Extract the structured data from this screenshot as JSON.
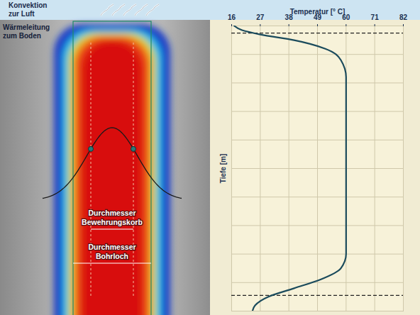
{
  "diagram": {
    "convection_label": "Konvektion zur Luft",
    "conduction_label": "Wärmeleitung zum Boden",
    "cage_diameter_label": "Durchmesser Bewehrungskorb",
    "borehole_diameter_label": "Durchmesser Bohrloch"
  },
  "chart_data": {
    "type": "line",
    "x_label": "Temperatur [° C]",
    "y_label": "Tiefe [m]",
    "x": [
      17,
      20,
      27,
      40,
      52,
      58,
      60,
      60,
      58,
      50,
      40,
      30,
      25,
      24
    ],
    "y": [
      0,
      0.15,
      0.3,
      0.5,
      0.8,
      1.2,
      1.8,
      8,
      8.5,
      8.9,
      9.2,
      9.5,
      9.8,
      10
    ],
    "color": "#1b4b5c",
    "xlim": [
      16,
      82
    ],
    "xticks": [
      16,
      27,
      38,
      49,
      60,
      71,
      82
    ],
    "ylim": [
      0,
      10
    ],
    "yticks": [
      0,
      1,
      2,
      3,
      4,
      5,
      6,
      7,
      8,
      9,
      10
    ],
    "grid": true,
    "tick_labels": "x",
    "reference_lines": {
      "values": [
        0.25,
        9.45
      ],
      "line_style": "dashed"
    }
  }
}
